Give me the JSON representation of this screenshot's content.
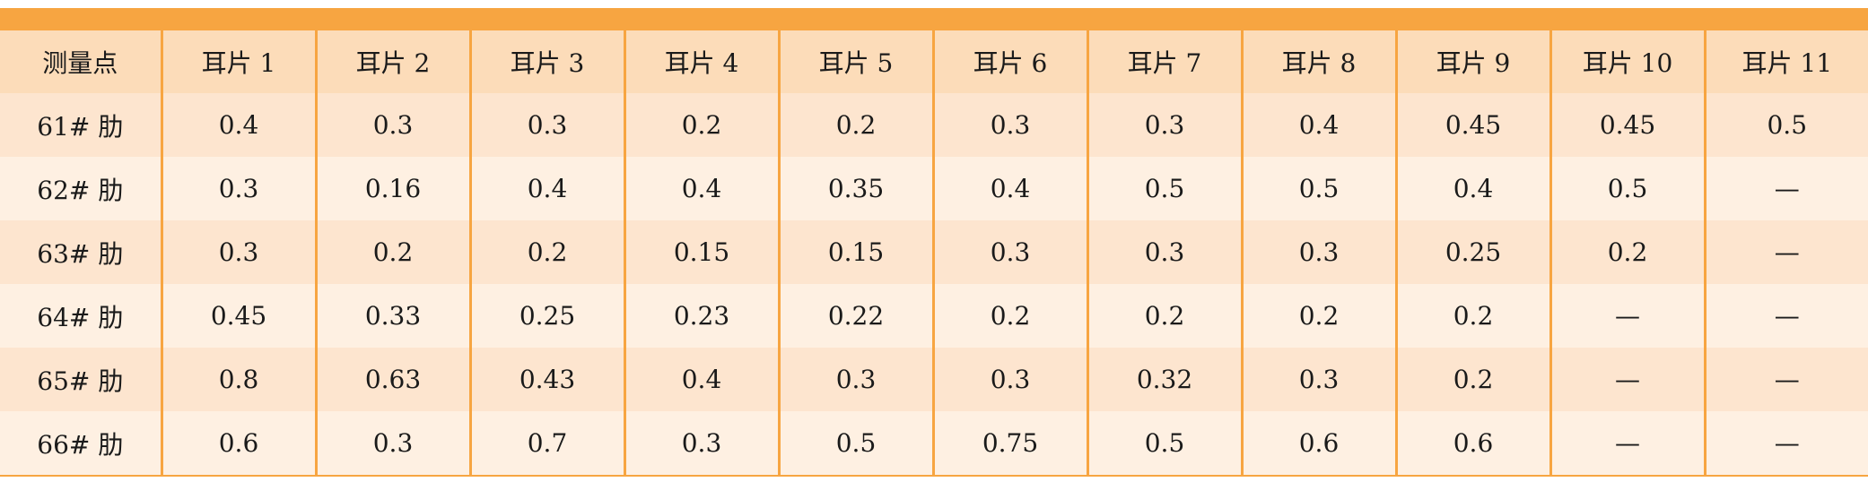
{
  "table": {
    "headers": [
      "测量点",
      "耳片 1",
      "耳片 2",
      "耳片 3",
      "耳片 4",
      "耳片 5",
      "耳片 6",
      "耳片 7",
      "耳片 8",
      "耳片 9",
      "耳片 10",
      "耳片 11"
    ],
    "rows": [
      [
        "61# 肋",
        "0.4",
        "0.3",
        "0.3",
        "0.2",
        "0.2",
        "0.3",
        "0.3",
        "0.4",
        "0.45",
        "0.45",
        "0.5"
      ],
      [
        "62# 肋",
        "0.3",
        "0.16",
        "0.4",
        "0.4",
        "0.35",
        "0.4",
        "0.5",
        "0.5",
        "0.4",
        "0.5",
        "—"
      ],
      [
        "63# 肋",
        "0.3",
        "0.2",
        "0.2",
        "0.15",
        "0.15",
        "0.3",
        "0.3",
        "0.3",
        "0.25",
        "0.2",
        "—"
      ],
      [
        "64# 肋",
        "0.45",
        "0.33",
        "0.25",
        "0.23",
        "0.22",
        "0.2",
        "0.2",
        "0.2",
        "0.2",
        "—",
        "—"
      ],
      [
        "65# 肋",
        "0.8",
        "0.63",
        "0.43",
        "0.4",
        "0.3",
        "0.3",
        "0.32",
        "0.3",
        "0.2",
        "—",
        "—"
      ],
      [
        "66# 肋",
        "0.6",
        "0.3",
        "0.7",
        "0.3",
        "0.5",
        "0.75",
        "0.5",
        "0.6",
        "0.6",
        "—",
        "—"
      ]
    ]
  },
  "colors": {
    "accent": "#f7a541",
    "header_bg": "#fcdcb9",
    "row_odd_bg": "#fde5cf",
    "row_even_bg": "#fef0e2"
  }
}
